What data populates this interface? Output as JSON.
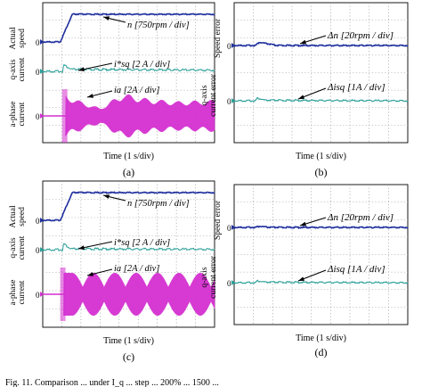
{
  "figure": {
    "caption_fragment": "Fig. 11.   Comparison ... under I_q ... step ... 200% ... 1500 ..."
  },
  "colors": {
    "speed": "#1f2f9e",
    "q_current": "#2a9f9a",
    "phase_current": "#d42fd0",
    "frame": "#000000",
    "grid": "#8f8f8f"
  },
  "chart_data": [
    {
      "panel": "a",
      "type": "line",
      "title": "",
      "xlabel": "Time (1 s/div)",
      "panel_label": "(a)",
      "channels": [
        {
          "name": "Actual speed",
          "scale_label": "n [750rpm / div]",
          "zero_marker": "0",
          "segments": [
            {
              "t": 0.0,
              "y": 0
            },
            {
              "t": 0.92,
              "y": 0
            },
            {
              "t": 1.55,
              "y": 3.1
            },
            {
              "t": 9.0,
              "y": 3.1
            }
          ],
          "unit": "div"
        },
        {
          "name": "q-axis current",
          "scale_label": "i*sq [2 A / div]",
          "zero_marker": "0",
          "segments": [
            {
              "t": 0.0,
              "y": 0
            },
            {
              "t": 1.05,
              "y": 0
            },
            {
              "t": 1.1,
              "y": 0.8
            },
            {
              "t": 1.5,
              "y": 0.25
            },
            {
              "t": 9.0,
              "y": 0.15
            }
          ],
          "unit": "div"
        },
        {
          "name": "a-phase current",
          "scale_label": "ia [2A / div]",
          "zero_marker": "0",
          "envelope": [
            {
              "t": 0.0,
              "amp": 0
            },
            {
              "t": 1.2,
              "amp": 1.6
            },
            {
              "t": 2.0,
              "amp": 1.1
            },
            {
              "t": 3.0,
              "amp": 0.6
            },
            {
              "t": 4.2,
              "amp": 1.7
            },
            {
              "t": 5.5,
              "amp": 1.3
            },
            {
              "t": 7.0,
              "amp": 1.1
            },
            {
              "t": 9.0,
              "amp": 1.2
            }
          ],
          "unit": "div"
        }
      ]
    },
    {
      "panel": "b",
      "type": "line",
      "title": "",
      "xlabel": "Time (1 s/div)",
      "panel_label": "(b)",
      "channels": [
        {
          "name": "Speed error",
          "scale_label": "Δn [20rpm / div]",
          "zero_marker": "0",
          "segments": [
            {
              "t": 0.0,
              "y": 0
            },
            {
              "t": 1.1,
              "y": 0
            },
            {
              "t": 1.3,
              "y": 0.35
            },
            {
              "t": 1.7,
              "y": 0.2
            },
            {
              "t": 2.2,
              "y": 0
            },
            {
              "t": 9.0,
              "y": 0
            }
          ],
          "unit": "div"
        },
        {
          "name": "q-axis current error",
          "scale_label": "Δisq [1A / div]",
          "zero_marker": "0",
          "segments": [
            {
              "t": 0.0,
              "y": 0
            },
            {
              "t": 1.1,
              "y": 0
            },
            {
              "t": 1.2,
              "y": 0.3
            },
            {
              "t": 1.6,
              "y": 0.05
            },
            {
              "t": 9.0,
              "y": 0
            }
          ],
          "unit": "div"
        }
      ]
    },
    {
      "panel": "c",
      "type": "line",
      "title": "",
      "xlabel": "Time (1 s/div)",
      "panel_label": "(c)",
      "channels": [
        {
          "name": "Actual speed",
          "scale_label": "n [750rpm / div]",
          "zero_marker": "0",
          "segments": [
            {
              "t": 0.0,
              "y": 0
            },
            {
              "t": 0.92,
              "y": 0
            },
            {
              "t": 1.55,
              "y": 3.1
            },
            {
              "t": 9.0,
              "y": 3.1
            }
          ],
          "unit": "div"
        },
        {
          "name": "q-axis current",
          "scale_label": "i*sq [2 A / div]",
          "zero_marker": "0",
          "segments": [
            {
              "t": 0.0,
              "y": 0
            },
            {
              "t": 1.05,
              "y": 0
            },
            {
              "t": 1.1,
              "y": 0.75
            },
            {
              "t": 1.45,
              "y": 0.1
            },
            {
              "t": 9.0,
              "y": 0.05
            }
          ],
          "unit": "div"
        },
        {
          "name": "a-phase current",
          "scale_label": "ia [2A / div]",
          "zero_marker": "0",
          "envelope_beat": {
            "start_t": 1.1,
            "beat_period_t": 1.12,
            "max_amp": 1.6,
            "min_amp": 0.55
          },
          "unit": "div"
        }
      ]
    },
    {
      "panel": "d",
      "type": "line",
      "title": "",
      "xlabel": "Time (1 s/div)",
      "panel_label": "(d)",
      "channels": [
        {
          "name": "Speed error",
          "scale_label": "Δn [20rpm / div]",
          "zero_marker": "0",
          "segments": [
            {
              "t": 0.0,
              "y": 0
            },
            {
              "t": 1.1,
              "y": 0
            },
            {
              "t": 1.3,
              "y": 0.12
            },
            {
              "t": 1.8,
              "y": 0
            },
            {
              "t": 9.0,
              "y": 0
            }
          ],
          "unit": "div"
        },
        {
          "name": "q-axis current error",
          "scale_label": "Δisq [1A / div]",
          "zero_marker": "0",
          "segments": [
            {
              "t": 0.0,
              "y": 0
            },
            {
              "t": 1.1,
              "y": 0
            },
            {
              "t": 1.2,
              "y": 0.2
            },
            {
              "t": 1.6,
              "y": 0.05
            },
            {
              "t": 9.0,
              "y": 0
            }
          ],
          "unit": "div"
        }
      ]
    }
  ]
}
